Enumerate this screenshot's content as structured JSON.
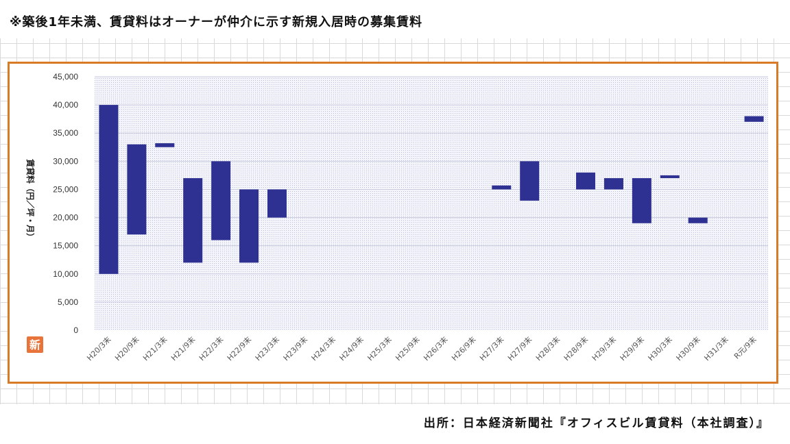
{
  "page": {
    "title": "※築後1年未満、賃貸料はオーナーが仲介に示す新規入居時の募集賃料",
    "source": "出所：日本経済新聞社『オフィスビル賃貸料（本社調査）』",
    "logo_char": "新",
    "colors": {
      "frame": "#d97a26",
      "bar": "#2e3192",
      "logo": "#e8743b"
    }
  },
  "chart_data": {
    "type": "bar",
    "subtype": "floating-range",
    "title": "",
    "xlabel": "",
    "ylabel": "賃貸料（円／坪・月）",
    "ylim": [
      0,
      45000
    ],
    "yticks": [
      0,
      5000,
      10000,
      15000,
      20000,
      25000,
      30000,
      35000,
      40000,
      45000
    ],
    "ytick_labels": [
      "0",
      "5,000",
      "10,000",
      "15,000",
      "20,000",
      "25,000",
      "30,000",
      "35,000",
      "40,000",
      "45,000"
    ],
    "grid": true,
    "legend": "none",
    "categories": [
      "H20/3末",
      "H20/9末",
      "H21/3末",
      "H21/9末",
      "H22/3末",
      "H22/9末",
      "H23/3末",
      "H23/9末",
      "H24/3末",
      "H24/9末",
      "H25/3末",
      "H25/9末",
      "H26/3末",
      "H26/9末",
      "H27/3末",
      "H27/9末",
      "H28/3末",
      "H28/9末",
      "H29/3末",
      "H29/9末",
      "H30/3末",
      "H30/9末",
      "H31/3末",
      "R元/9末"
    ],
    "low": [
      10000,
      17000,
      32500,
      12000,
      16000,
      12000,
      20000,
      null,
      null,
      null,
      null,
      null,
      null,
      null,
      25000,
      23000,
      null,
      25000,
      25000,
      19000,
      27000,
      19000,
      null,
      37000
    ],
    "high": [
      40000,
      33000,
      33200,
      27000,
      30000,
      25000,
      25000,
      null,
      null,
      null,
      null,
      null,
      null,
      null,
      25700,
      30000,
      null,
      28000,
      27000,
      27000,
      27500,
      20000,
      null,
      38000
    ]
  }
}
